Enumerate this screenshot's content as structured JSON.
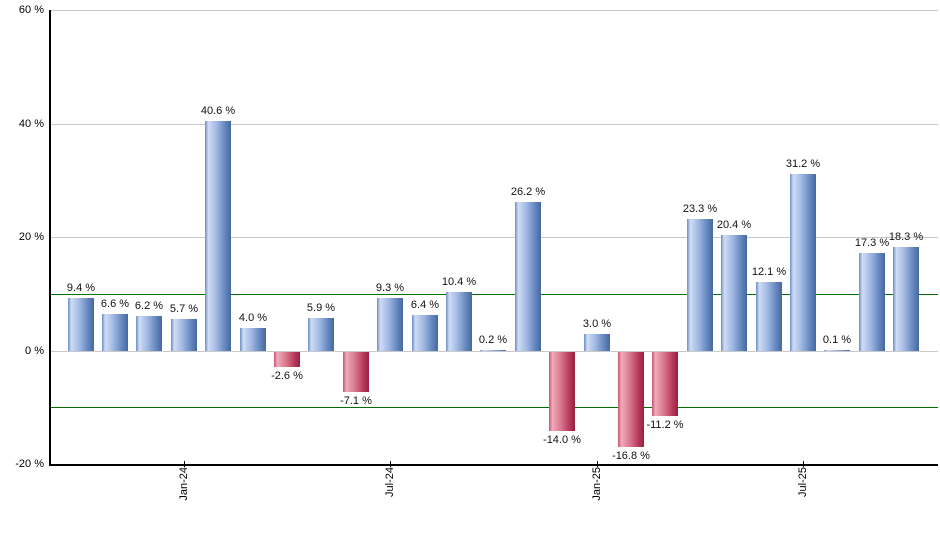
{
  "chart_data": {
    "type": "bar",
    "title": "",
    "xlabel": "",
    "ylabel": "",
    "ylim": [
      -20,
      60
    ],
    "grid": true,
    "legend": false,
    "y_ticks": [
      {
        "value": 60,
        "label": "60 %"
      },
      {
        "value": 40,
        "label": "40 %"
      },
      {
        "value": 20,
        "label": "20 %"
      },
      {
        "value": 0,
        "label": "0 %"
      },
      {
        "value": -20,
        "label": "-20 %"
      }
    ],
    "gridline_values": [
      60,
      40,
      20,
      0
    ],
    "reference_line_values": [
      10,
      -10
    ],
    "x_ticks": [
      {
        "label": "Jan-24",
        "bar_index": 3
      },
      {
        "label": "Jul-24",
        "bar_index": 9
      },
      {
        "label": "Jan-25",
        "bar_index": 15
      },
      {
        "label": "Jul-25",
        "bar_index": 21
      }
    ],
    "bars": [
      {
        "value": 9.4,
        "label": "9.4 %"
      },
      {
        "value": 6.6,
        "label": "6.6 %"
      },
      {
        "value": 6.2,
        "label": "6.2 %"
      },
      {
        "value": 5.7,
        "label": "5.7 %"
      },
      {
        "value": 40.6,
        "label": "40.6 %"
      },
      {
        "value": 4.0,
        "label": "4.0 %"
      },
      {
        "value": -2.6,
        "label": "-2.6 %"
      },
      {
        "value": 5.9,
        "label": "5.9 %"
      },
      {
        "value": -7.1,
        "label": "-7.1 %"
      },
      {
        "value": 9.3,
        "label": "9.3 %"
      },
      {
        "value": 6.4,
        "label": "6.4 %"
      },
      {
        "value": 10.4,
        "label": "10.4 %"
      },
      {
        "value": 0.2,
        "label": "0.2 %"
      },
      {
        "value": 26.2,
        "label": "26.2 %"
      },
      {
        "value": -14.0,
        "label": "-14.0 %"
      },
      {
        "value": 3.0,
        "label": "3.0 %"
      },
      {
        "value": -16.8,
        "label": "-16.8 %"
      },
      {
        "value": -11.2,
        "label": "-11.2 %"
      },
      {
        "value": 23.3,
        "label": "23.3 %"
      },
      {
        "value": 20.4,
        "label": "20.4 %"
      },
      {
        "value": 12.1,
        "label": "12.1 %"
      },
      {
        "value": 31.2,
        "label": "31.2 %"
      },
      {
        "value": 0.1,
        "label": "0.1 %"
      },
      {
        "value": 17.3,
        "label": "17.3 %"
      },
      {
        "value": 18.3,
        "label": "18.3 %"
      }
    ],
    "colors": {
      "positive_bar": "#6286bd",
      "positive_bar_highlight": "#d0ddf5",
      "positive_bar_dark": "#47689e",
      "negative_bar": "#b93a5d",
      "negative_bar_highlight": "#f2aab8",
      "negative_bar_dark": "#96203f",
      "gridline": "#c9c9c9",
      "reference_line": "#007000",
      "axis": "#000000",
      "label_text": "#111111"
    }
  }
}
